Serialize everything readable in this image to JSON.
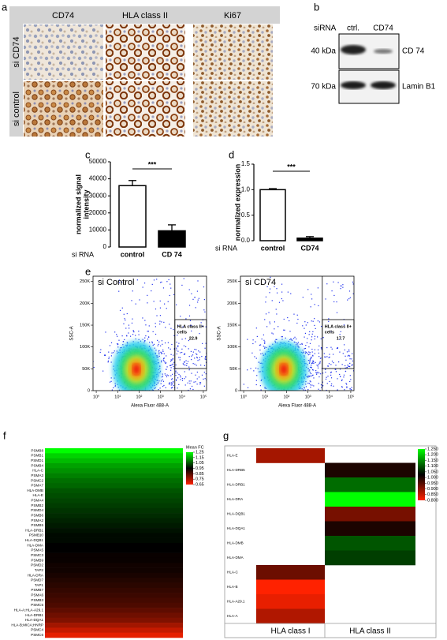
{
  "panel_labels": [
    "a",
    "b",
    "c",
    "d",
    "e",
    "f",
    "g"
  ],
  "ihc": {
    "columns": [
      "CD74",
      "HLA class II",
      "Ki67"
    ],
    "rows": [
      "si CD74",
      "si control"
    ]
  },
  "blot": {
    "header": "siRNA",
    "lanes": [
      "ctrl.",
      "CD74"
    ],
    "strips": [
      {
        "size": "40 kDa",
        "protein": "CD 74"
      },
      {
        "size": "70 kDa",
        "protein": "Lamin B1"
      }
    ]
  },
  "chart_data": [
    {
      "type": "bar",
      "ylabel": [
        "normalized signal",
        "intensity"
      ],
      "xlabel": "si RNA",
      "categories": [
        "control",
        "CD 74"
      ],
      "values": [
        36000,
        9500
      ],
      "errors": [
        3000,
        3500
      ],
      "colors": [
        "#ffffff",
        "#000000"
      ],
      "ylim": [
        0,
        50000
      ],
      "yticks": [
        0,
        10000,
        20000,
        30000,
        40000,
        50000
      ],
      "annotation": "***"
    },
    {
      "type": "bar",
      "ylabel": [
        "normalized expression"
      ],
      "xlabel": "si RNA",
      "categories": [
        "control",
        "CD74"
      ],
      "values": [
        1.0,
        0.05
      ],
      "errors": [
        0.02,
        0.03
      ],
      "colors": [
        "#ffffff",
        "#000000"
      ],
      "ylim": [
        0,
        1.5
      ],
      "yticks": [
        {
          "value": 0,
          "label": "0.0"
        },
        {
          "value": 0.5,
          "label": "0.5"
        },
        {
          "value": 1,
          "label": "1.0"
        },
        {
          "value": 1.5,
          "label": "1.5"
        }
      ],
      "annotation": "***"
    },
    {
      "type": "heatmap",
      "legend_title": "Mean FC",
      "rows": [
        "PSMB8",
        "PSMB1",
        "PSMD1",
        "PSMB4",
        "HLA-C",
        "PSMA3",
        "PSMC2",
        "PSMA7",
        "HLA-DMB",
        "HLA-E",
        "PSMA4",
        "PSMB2",
        "PSMD4",
        "PSMB6",
        "PSMA2",
        "PSMB5",
        "HLA-DRB1",
        "PSMB10",
        "HLA-DQB1",
        "HLA-DMA",
        "PSMA5",
        "PSMC3",
        "PSMB9",
        "PSMD2",
        "TAP2",
        "HLA-DRA",
        "PSMD7",
        "TAP1",
        "PSMB7",
        "PSMA6",
        "PSMB3",
        "PSMC5",
        "HLA-A;HLA-A29.1",
        "HLA-DRB1",
        "HLA-DQA1",
        "HLA-B;MICA;HNRP",
        "PSMC4",
        "PSMC6"
      ],
      "values": [
        1.25,
        1.2,
        1.17,
        1.14,
        1.12,
        1.1,
        1.08,
        1.07,
        1.05,
        1.04,
        1.03,
        1.02,
        1.01,
        1.0,
        0.99,
        0.98,
        0.97,
        0.96,
        0.96,
        0.95,
        0.95,
        0.94,
        0.94,
        0.93,
        0.93,
        0.92,
        0.91,
        0.9,
        0.89,
        0.88,
        0.87,
        0.86,
        0.84,
        0.82,
        0.8,
        0.76,
        0.72,
        0.68
      ],
      "clim": [
        0.65,
        1.25
      ],
      "cticks": [
        1.25,
        1.15,
        1.05,
        0.95,
        0.85,
        0.75,
        0.65
      ],
      "colorscale": [
        "#ff2200",
        "#000000",
        "#00ff00"
      ]
    },
    {
      "type": "heatmap",
      "rows": [
        "HLA-E",
        "HLA-DRB5",
        "HLA-DRB1",
        "HLA-DRA",
        "HLA-DQB1",
        "HLA-DQA1",
        "HLA-DMB",
        "HLA-DMA",
        "HLA-C",
        "HLA-B",
        "HLA-A29.1",
        "HLA-A"
      ],
      "columns": [
        "HLA class I",
        "HLA class II"
      ],
      "values": [
        [
          0.88,
          null
        ],
        [
          null,
          1.0
        ],
        [
          null,
          1.12
        ],
        [
          null,
          1.25
        ],
        [
          null,
          0.92
        ],
        [
          null,
          1.0
        ],
        [
          null,
          1.1
        ],
        [
          null,
          1.08
        ],
        [
          0.93,
          null
        ],
        [
          0.8,
          null
        ],
        [
          0.82,
          null
        ],
        [
          0.87,
          null
        ]
      ],
      "clim": [
        0.8,
        1.25
      ],
      "cticks": [
        {
          "value": 1.25,
          "label": "1.250"
        },
        {
          "value": 1.2,
          "label": "1.200"
        },
        {
          "value": 1.15,
          "label": "1.150"
        },
        {
          "value": 1.1,
          "label": "1.100"
        },
        {
          "value": 1.05,
          "label": "1.050"
        },
        {
          "value": 1.0,
          "label": "1.000"
        },
        {
          "value": 0.95,
          "label": "0.950"
        },
        {
          "value": 0.9,
          "label": "0.900"
        },
        {
          "value": 0.85,
          "label": "0.850"
        },
        {
          "value": 0.8,
          "label": "0.800"
        }
      ],
      "colorscale": [
        "#ff2200",
        "#000000",
        "#00ff00"
      ]
    }
  ],
  "flow": {
    "xlabel": "Alexa Fluor 488-A",
    "ylabel": "SSC-A",
    "xlim": [
      -0.15,
      5.15
    ],
    "xticks": [
      {
        "value": 0,
        "label": "10⁰"
      },
      {
        "value": 1,
        "label": "10¹"
      },
      {
        "value": 2,
        "label": "10²"
      },
      {
        "value": 3,
        "label": "10³"
      },
      {
        "value": 4,
        "label": "10⁴"
      },
      {
        "value": 5,
        "label": "10⁵"
      }
    ],
    "ylim": [
      0,
      262144
    ],
    "yticks": [
      0,
      {
        "value": 50000,
        "label": "50K"
      },
      {
        "value": 100000,
        "label": "100K"
      },
      {
        "value": 150000,
        "label": "150K"
      },
      {
        "value": 200000,
        "label": "200K"
      },
      {
        "value": 250000,
        "label": "250K"
      }
    ],
    "gate_x": 3.67,
    "panels": [
      {
        "title": "si Control",
        "gate_label": [
          "HLA class II+",
          "cells"
        ],
        "gate_value": 22.9
      },
      {
        "title": "si CD74",
        "gate_label": [
          "HLA class II+",
          "cells"
        ],
        "gate_value": 17.7
      }
    ]
  }
}
